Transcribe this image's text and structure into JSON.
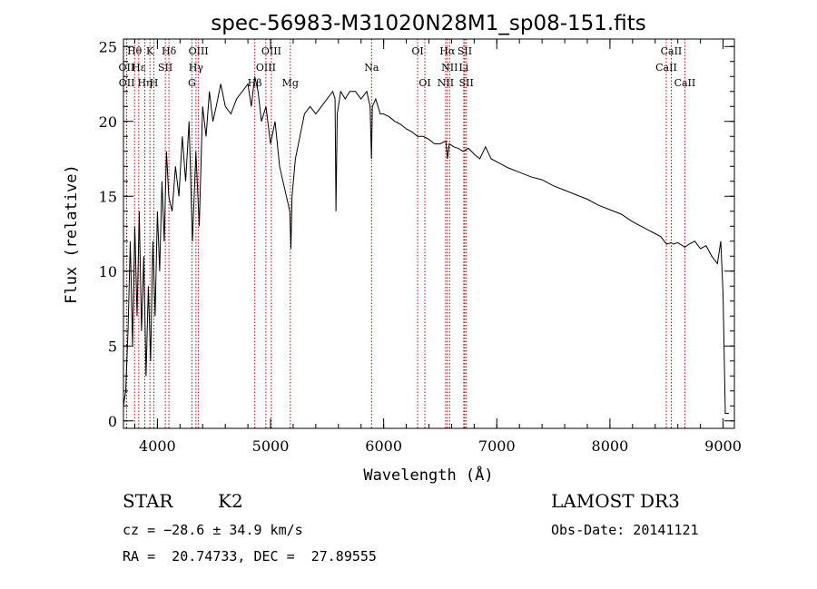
{
  "chart_data": {
    "type": "line",
    "title": "spec-56983-M31020N28M1_sp08-151.fits",
    "xlabel": "Wavelength (Å)",
    "ylabel": "Flux (relative)",
    "xlim": [
      3700,
      9100
    ],
    "ylim": [
      -0.5,
      25.5
    ],
    "xticks": [
      4000,
      5000,
      6000,
      7000,
      8000,
      9000
    ],
    "yticks": [
      0,
      5,
      10,
      15,
      20,
      25
    ],
    "x_minor_step": 200,
    "y_minor_step": 1,
    "series": [
      {
        "name": "spectrum",
        "x": [
          3700,
          3720,
          3740,
          3760,
          3780,
          3800,
          3820,
          3840,
          3860,
          3880,
          3900,
          3920,
          3940,
          3960,
          3980,
          4000,
          4020,
          4040,
          4060,
          4080,
          4100,
          4130,
          4160,
          4190,
          4220,
          4250,
          4280,
          4310,
          4340,
          4370,
          4400,
          4430,
          4460,
          4490,
          4520,
          4560,
          4600,
          4650,
          4700,
          4750,
          4800,
          4830,
          4860,
          4890,
          4920,
          4960,
          5000,
          5040,
          5080,
          5110,
          5140,
          5170,
          5180,
          5190,
          5220,
          5260,
          5300,
          5350,
          5400,
          5450,
          5500,
          5550,
          5570,
          5578,
          5590,
          5620,
          5660,
          5700,
          5750,
          5800,
          5850,
          5880,
          5892,
          5900,
          5930,
          5970,
          6000,
          6050,
          6100,
          6150,
          6200,
          6250,
          6300,
          6350,
          6400,
          6450,
          6500,
          6550,
          6563,
          6580,
          6620,
          6660,
          6700,
          6750,
          6800,
          6850,
          6900,
          6950,
          7000,
          7100,
          7200,
          7300,
          7400,
          7500,
          7600,
          7700,
          7800,
          7900,
          8000,
          8100,
          8200,
          8300,
          8400,
          8450,
          8500,
          8542,
          8560,
          8600,
          8662,
          8700,
          8750,
          8800,
          8850,
          8900,
          8950,
          8980,
          9000,
          9020,
          9050
        ],
        "values": [
          1,
          2,
          6,
          12,
          5,
          13,
          7,
          14,
          6,
          11,
          3,
          9,
          4,
          12,
          7,
          14,
          10,
          16,
          12,
          18,
          15,
          14,
          17,
          15,
          19,
          16,
          20,
          12,
          18,
          13,
          21,
          19,
          22,
          20,
          21,
          22.5,
          21,
          20.5,
          21.5,
          22,
          22.5,
          21,
          23,
          22,
          20,
          21,
          18.5,
          20,
          17,
          16,
          15,
          14,
          11.5,
          15,
          17.5,
          19,
          20.5,
          21,
          20.5,
          21,
          21.5,
          22,
          21.5,
          14,
          20.5,
          22,
          21.5,
          22,
          22,
          21.5,
          22,
          21,
          17.5,
          21,
          21.5,
          20.5,
          20.5,
          20.3,
          20,
          19.8,
          19.5,
          19.3,
          19,
          19,
          18.8,
          18.5,
          18.5,
          18.7,
          17.5,
          18.5,
          18.3,
          18.2,
          18,
          18.2,
          17.8,
          17.5,
          18.3,
          17.5,
          17.3,
          16.9,
          16.6,
          16.3,
          16.1,
          15.7,
          15.4,
          15.1,
          14.8,
          14.4,
          14.1,
          13.8,
          13.3,
          12.9,
          12.5,
          12.3,
          11.8,
          11.9,
          11.8,
          11.9,
          11.6,
          11.8,
          12,
          11.5,
          11.7,
          11,
          10.5,
          12,
          8.5,
          0.5,
          0.5
        ]
      }
    ],
    "spectral_lines": [
      {
        "label": "Hθ",
        "x": 3798,
        "row": 0
      },
      {
        "label": "OII",
        "x": 3727,
        "row": 1
      },
      {
        "label": "OII",
        "x": 3729,
        "row": 2
      },
      {
        "label": "Hε",
        "x": 3835,
        "row": 1
      },
      {
        "label": "Hη",
        "x": 3889,
        "row": 2
      },
      {
        "label": "K",
        "x": 3934,
        "row": 0
      },
      {
        "label": "H",
        "x": 3969,
        "row": 2
      },
      {
        "label": "SII",
        "x": 4070,
        "row": 1
      },
      {
        "label": "Hδ",
        "x": 4102,
        "row": 0
      },
      {
        "label": "OIII",
        "x": 4363,
        "row": 0
      },
      {
        "label": "Hγ",
        "x": 4341,
        "row": 1
      },
      {
        "label": "G",
        "x": 4305,
        "row": 2
      },
      {
        "label": "Hβ",
        "x": 4861,
        "row": 2
      },
      {
        "label": "OIII",
        "x": 5007,
        "row": 0
      },
      {
        "label": "OIII",
        "x": 4959,
        "row": 1
      },
      {
        "label": "Mg",
        "x": 5175,
        "row": 2
      },
      {
        "label": "Na",
        "x": 5893,
        "row": 1
      },
      {
        "label": "OI",
        "x": 6300,
        "row": 0
      },
      {
        "label": "OI",
        "x": 6364,
        "row": 2
      },
      {
        "label": "Hα",
        "x": 6563,
        "row": 0
      },
      {
        "label": "NII",
        "x": 6583,
        "row": 1
      },
      {
        "label": "NII",
        "x": 6548,
        "row": 2
      },
      {
        "label": "SII",
        "x": 6717,
        "row": 0
      },
      {
        "label": "Li",
        "x": 6708,
        "row": 1
      },
      {
        "label": "SII",
        "x": 6731,
        "row": 2
      },
      {
        "label": "CaII",
        "x": 8542,
        "row": 0
      },
      {
        "label": "CaII",
        "x": 8498,
        "row": 1
      },
      {
        "label": "CaII",
        "x": 8662,
        "row": 2
      }
    ],
    "colors": {
      "spectrum": "#000000",
      "lines": "#c00000"
    }
  },
  "info": {
    "class_label": "STAR",
    "subclass": "K2",
    "survey": "LAMOST DR3",
    "cz": "cz = −28.6 ± 34.9 km/s",
    "obs_date": "Obs-Date: 20141121",
    "coords": "RA =  20.74733, DEC =  27.89555"
  }
}
